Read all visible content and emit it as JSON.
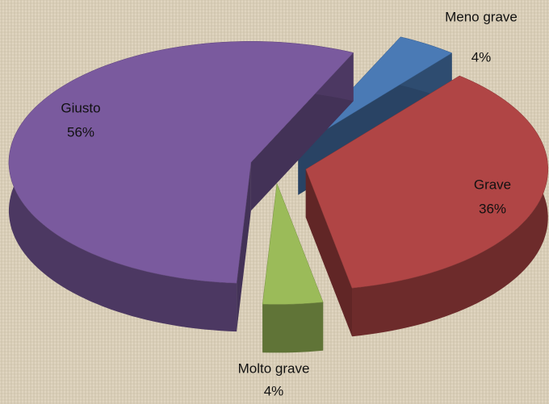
{
  "chart_data": {
    "type": "pie3d",
    "categories": [
      "Meno grave",
      "Grave",
      "Molto grave",
      "Giusto"
    ],
    "values": [
      4,
      36,
      4,
      56
    ],
    "value_labels": [
      "4%",
      "36%",
      "4%",
      "56%"
    ],
    "colors": [
      "#4a7ab5",
      "#b04545",
      "#9bbb59",
      "#7a5a9e"
    ]
  }
}
